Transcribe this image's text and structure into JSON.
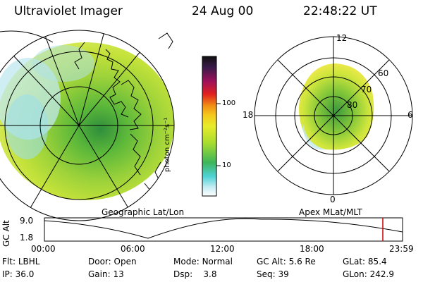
{
  "header": {
    "instrument": "Ultraviolet Imager",
    "date": "24 Aug 00",
    "time": "22:48:22 UT"
  },
  "colorbar": {
    "unit_label": "photon cm⁻²s⁻¹",
    "ticks": [
      "100",
      "10"
    ]
  },
  "polar_plot": {
    "mlt_labels": [
      "12",
      "18",
      "6",
      "0"
    ],
    "lat_labels": [
      "60",
      "70",
      "80"
    ]
  },
  "panels": {
    "left_label": "Geographic Lat/Lon",
    "right_label": "Apex MLat/MLT"
  },
  "altitude_plot": {
    "ylabel": "GC Alt",
    "yticks": [
      "9.0",
      "1.8"
    ],
    "xticks": [
      "00:00",
      "06:00",
      "12:00",
      "18:00",
      "23:59"
    ],
    "current_time_marker_color": "#cc0000"
  },
  "footer": {
    "rows": [
      [
        {
          "label": "Flt:",
          "value": "LBHL"
        },
        {
          "label": "Door:",
          "value": "Open"
        },
        {
          "label": "Mode:",
          "value": "Normal"
        },
        {
          "label": "GC Alt:",
          "value": "5.6 Re"
        },
        {
          "label": "GLat:",
          "value": "85.4"
        }
      ],
      [
        {
          "label": "IP:",
          "value": "36.0"
        },
        {
          "label": "Gain:",
          "value": "13"
        },
        {
          "label": "Dsp:",
          "value": "3.8"
        },
        {
          "label": "Seq:",
          "value": "39"
        },
        {
          "label": "GLon:",
          "value": "242.9"
        }
      ]
    ]
  }
}
